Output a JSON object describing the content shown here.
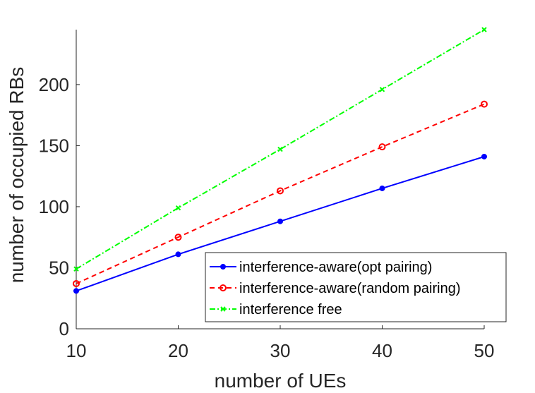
{
  "chart_data": {
    "type": "line",
    "xlabel": "number of UEs",
    "ylabel": "number of occupied RBs",
    "xlim": [
      10,
      50
    ],
    "ylim": [
      0,
      245
    ],
    "xticks": [
      10,
      20,
      30,
      40,
      50
    ],
    "yticks": [
      0,
      50,
      100,
      150,
      200
    ],
    "x": [
      10,
      20,
      30,
      40,
      50
    ],
    "series": [
      {
        "name": "interference-aware(opt pairing)",
        "values": [
          31,
          61,
          88,
          115,
          141
        ],
        "color": "#0000ff",
        "line_style": "solid",
        "marker": "dot"
      },
      {
        "name": "interference-aware(random pairing)",
        "values": [
          37,
          75,
          113,
          149,
          184
        ],
        "color": "#ff0000",
        "line_style": "dashed",
        "marker": "circle"
      },
      {
        "name": "interference free",
        "values": [
          49,
          99,
          147,
          196,
          245
        ],
        "color": "#00ff00",
        "line_style": "dash-dot",
        "marker": "x"
      }
    ],
    "legend_position": "bottom-right",
    "grid": false
  }
}
